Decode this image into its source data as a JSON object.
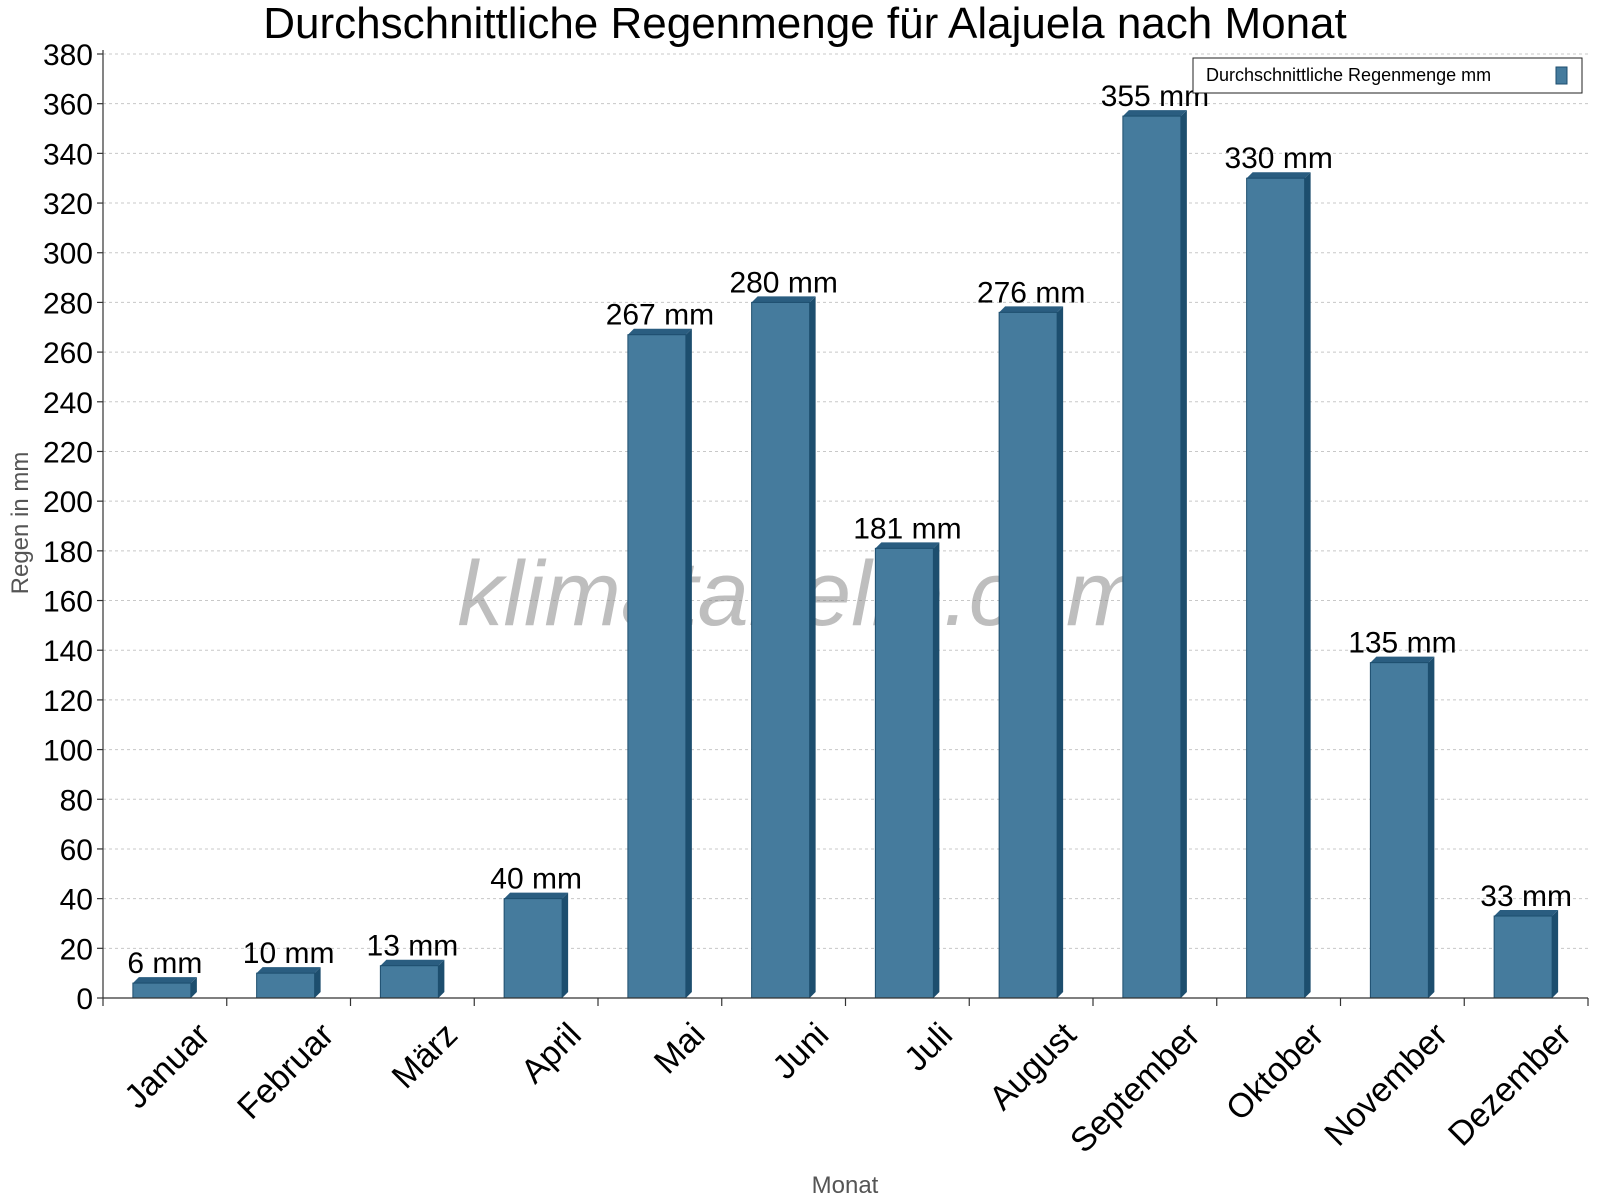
{
  "chart_data": {
    "type": "bar",
    "title": "Durchschnittliche Regenmenge für Alajuela nach Monat",
    "xlabel": "Monat",
    "ylabel": "Regen in mm",
    "categories": [
      "Januar",
      "Februar",
      "März",
      "April",
      "Mai",
      "Juni",
      "Juli",
      "August",
      "September",
      "Oktober",
      "November",
      "Dezember"
    ],
    "series": [
      {
        "name": "Durchschnittliche Regenmenge mm",
        "values": [
          6,
          10,
          13,
          40,
          267,
          280,
          181,
          276,
          355,
          330,
          135,
          33
        ],
        "data_labels": [
          "6 mm",
          "10 mm",
          "13 mm",
          "40 mm",
          "267 mm",
          "280 mm",
          "181 mm",
          "276 mm",
          "355 mm",
          "330 mm",
          "135 mm",
          "33 mm"
        ]
      }
    ],
    "ylim": [
      0,
      380
    ],
    "yticks": [
      0,
      20,
      40,
      60,
      80,
      100,
      120,
      140,
      160,
      180,
      200,
      220,
      240,
      260,
      280,
      300,
      320,
      340,
      360,
      380
    ],
    "grid": true,
    "legend_position": "top-right",
    "watermark": "klimatabelle.com",
    "colors": {
      "bar": "#457b9d",
      "bar_side": "#1d4e6e",
      "bar_top": "#2a5d80"
    }
  }
}
